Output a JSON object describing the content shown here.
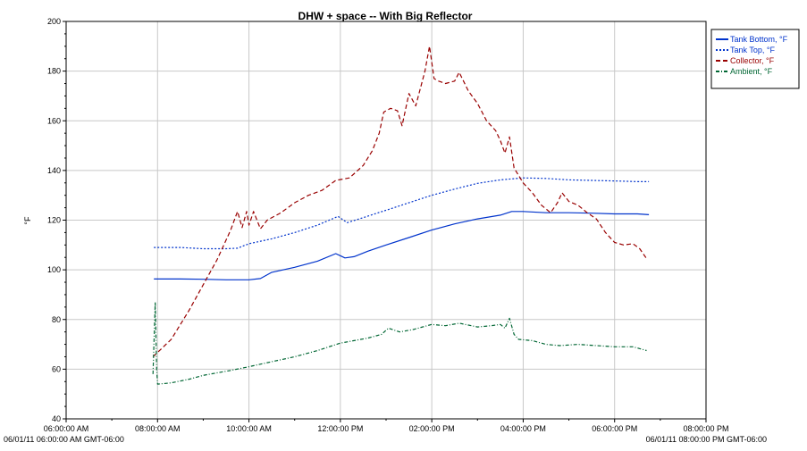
{
  "chart_data": {
    "type": "line",
    "title": "DHW + space -- With Big Reflector",
    "xlabel": "",
    "ylabel": "°F",
    "ylim": [
      40,
      200
    ],
    "yticks": [
      40,
      60,
      80,
      100,
      120,
      140,
      160,
      180,
      200
    ],
    "xlim": [
      "06:00:00 AM",
      "08:00:00 PM"
    ],
    "xtick_labels": [
      "06:00:00 AM",
      "08:00:00 AM",
      "10:00:00 AM",
      "12:00:00 PM",
      "02:00:00 PM",
      "04:00:00 PM",
      "06:00:00 PM",
      "08:00:00 PM"
    ],
    "x_start_label": "06/01/11 06:00:00 AM GMT-06:00",
    "x_end_label": "06/01/11 08:00:00 PM GMT-06:00",
    "grid": true,
    "legend_position": "top-right",
    "series": [
      {
        "name": "Tank Bottom, °F",
        "color": "#0033cc",
        "dash": "solid",
        "points": [
          [
            7.92,
            96.3
          ],
          [
            8.5,
            96.3
          ],
          [
            9.0,
            96.2
          ],
          [
            9.5,
            96.0
          ],
          [
            10.0,
            96.0
          ],
          [
            10.25,
            96.5
          ],
          [
            10.5,
            99.0
          ],
          [
            11.0,
            101.0
          ],
          [
            11.5,
            103.5
          ],
          [
            11.9,
            106.5
          ],
          [
            12.1,
            104.8
          ],
          [
            12.3,
            105.3
          ],
          [
            12.6,
            107.5
          ],
          [
            13.0,
            110.0
          ],
          [
            13.5,
            113.0
          ],
          [
            14.0,
            116.0
          ],
          [
            14.5,
            118.5
          ],
          [
            15.0,
            120.5
          ],
          [
            15.5,
            122.0
          ],
          [
            15.75,
            123.5
          ],
          [
            16.0,
            123.5
          ],
          [
            16.5,
            123.0
          ],
          [
            17.0,
            123.0
          ],
          [
            17.5,
            122.8
          ],
          [
            18.0,
            122.5
          ],
          [
            18.5,
            122.5
          ],
          [
            18.75,
            122.2
          ]
        ]
      },
      {
        "name": "Tank Top, °F",
        "color": "#0033cc",
        "dash": "dotted",
        "points": [
          [
            7.92,
            109.0
          ],
          [
            8.5,
            109.0
          ],
          [
            9.0,
            108.5
          ],
          [
            9.5,
            108.5
          ],
          [
            9.75,
            108.7
          ],
          [
            10.0,
            110.5
          ],
          [
            10.5,
            112.5
          ],
          [
            11.0,
            115.0
          ],
          [
            11.5,
            118.0
          ],
          [
            11.95,
            121.5
          ],
          [
            12.15,
            119.0
          ],
          [
            12.5,
            121.0
          ],
          [
            13.0,
            124.0
          ],
          [
            13.5,
            127.0
          ],
          [
            14.0,
            130.0
          ],
          [
            14.5,
            132.5
          ],
          [
            15.0,
            134.8
          ],
          [
            15.5,
            136.2
          ],
          [
            16.0,
            137.0
          ],
          [
            16.5,
            136.8
          ],
          [
            17.0,
            136.2
          ],
          [
            17.5,
            136.0
          ],
          [
            18.0,
            135.8
          ],
          [
            18.5,
            135.5
          ],
          [
            18.75,
            135.5
          ]
        ]
      },
      {
        "name": "Collector, °F",
        "color": "#990000",
        "dash": "dashed",
        "points": [
          [
            7.9,
            65.0
          ],
          [
            8.3,
            72.0
          ],
          [
            8.7,
            84.0
          ],
          [
            9.0,
            94.0
          ],
          [
            9.3,
            104.0
          ],
          [
            9.6,
            116.0
          ],
          [
            9.7,
            121.0
          ],
          [
            9.75,
            123.5
          ],
          [
            9.85,
            117.0
          ],
          [
            9.95,
            123.5
          ],
          [
            10.0,
            118.0
          ],
          [
            10.1,
            123.5
          ],
          [
            10.25,
            116.5
          ],
          [
            10.4,
            120.0
          ],
          [
            10.7,
            123.0
          ],
          [
            11.0,
            127.0
          ],
          [
            11.3,
            130.0
          ],
          [
            11.6,
            132.0
          ],
          [
            11.9,
            136.0
          ],
          [
            12.2,
            137.0
          ],
          [
            12.5,
            142.0
          ],
          [
            12.7,
            148.0
          ],
          [
            12.85,
            155.0
          ],
          [
            12.95,
            163.5
          ],
          [
            13.1,
            165.0
          ],
          [
            13.25,
            164.0
          ],
          [
            13.35,
            158.0
          ],
          [
            13.5,
            171.0
          ],
          [
            13.65,
            166.0
          ],
          [
            13.85,
            180.0
          ],
          [
            13.95,
            190.0
          ],
          [
            14.05,
            177.0
          ],
          [
            14.15,
            176.0
          ],
          [
            14.3,
            175.0
          ],
          [
            14.5,
            176.0
          ],
          [
            14.6,
            179.5
          ],
          [
            14.8,
            172.0
          ],
          [
            15.0,
            167.0
          ],
          [
            15.2,
            160.0
          ],
          [
            15.4,
            156.0
          ],
          [
            15.5,
            152.0
          ],
          [
            15.6,
            147.0
          ],
          [
            15.7,
            153.5
          ],
          [
            15.8,
            141.0
          ],
          [
            15.9,
            138.0
          ],
          [
            16.0,
            135.0
          ],
          [
            16.2,
            131.0
          ],
          [
            16.4,
            126.0
          ],
          [
            16.6,
            123.0
          ],
          [
            16.75,
            127.0
          ],
          [
            16.85,
            131.0
          ],
          [
            17.0,
            127.5
          ],
          [
            17.2,
            126.0
          ],
          [
            17.4,
            123.0
          ],
          [
            17.6,
            120.5
          ],
          [
            17.8,
            115.0
          ],
          [
            18.0,
            111.0
          ],
          [
            18.2,
            110.0
          ],
          [
            18.4,
            110.5
          ],
          [
            18.55,
            108.5
          ],
          [
            18.7,
            104.5
          ]
        ]
      },
      {
        "name": "Ambient, °F",
        "color": "#006633",
        "dash": "dashdot",
        "points": [
          [
            7.9,
            58.0
          ],
          [
            7.95,
            87.0
          ],
          [
            7.98,
            60.0
          ],
          [
            8.0,
            54.0
          ],
          [
            8.3,
            54.5
          ],
          [
            8.7,
            56.0
          ],
          [
            9.0,
            57.5
          ],
          [
            9.3,
            58.5
          ],
          [
            9.6,
            59.5
          ],
          [
            10.0,
            61.0
          ],
          [
            10.5,
            63.0
          ],
          [
            11.0,
            65.0
          ],
          [
            11.5,
            67.5
          ],
          [
            12.0,
            70.5
          ],
          [
            12.3,
            71.5
          ],
          [
            12.6,
            72.5
          ],
          [
            12.9,
            74.0
          ],
          [
            13.05,
            76.5
          ],
          [
            13.3,
            75.0
          ],
          [
            13.6,
            76.0
          ],
          [
            14.0,
            78.0
          ],
          [
            14.3,
            77.5
          ],
          [
            14.6,
            78.5
          ],
          [
            15.0,
            77.0
          ],
          [
            15.3,
            77.5
          ],
          [
            15.5,
            78.0
          ],
          [
            15.6,
            76.5
          ],
          [
            15.7,
            80.5
          ],
          [
            15.8,
            74.0
          ],
          [
            15.9,
            72.0
          ],
          [
            16.2,
            71.5
          ],
          [
            16.5,
            70.0
          ],
          [
            16.8,
            69.5
          ],
          [
            17.2,
            70.0
          ],
          [
            17.6,
            69.5
          ],
          [
            18.0,
            69.0
          ],
          [
            18.4,
            69.0
          ],
          [
            18.7,
            67.5
          ]
        ]
      }
    ]
  }
}
